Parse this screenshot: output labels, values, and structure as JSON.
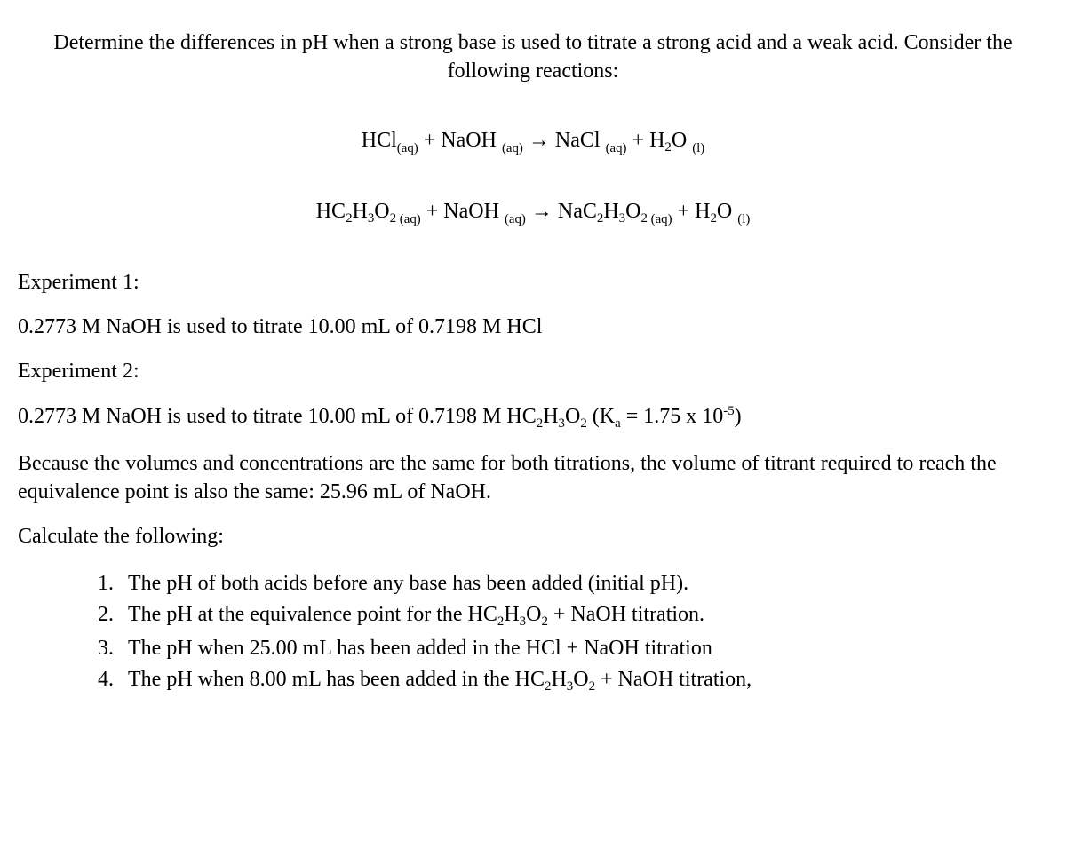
{
  "intro": "Determine the differences in pH when a strong base is used to titrate a strong acid and a weak acid. Consider the following reactions:",
  "eqn1": {
    "r1": "HCl",
    "r1state": "(aq)",
    "plus1": " + ",
    "r2": "NaOH",
    "r2state": "(aq)",
    "arrow": " → ",
    "p1": "NaCl",
    "p1state": "(aq)",
    "plus2": " + ",
    "p2a": "H",
    "p2sub": "2",
    "p2b": "O",
    "p2state": "(l)"
  },
  "eqn2": {
    "r1a": "HC",
    "r1s1": "2",
    "r1b": "H",
    "r1s2": "3",
    "r1c": "O",
    "r1s3": "2",
    "r1state": " (aq)",
    "plus1": " + ",
    "r2": "NaOH",
    "r2state": "(aq)",
    "arrow": " → ",
    "p1a": "NaC",
    "p1s1": "2",
    "p1b": "H",
    "p1s2": "3",
    "p1c": "O",
    "p1s3": "2",
    "p1state": " (aq)",
    "plus2": " + ",
    "p2a": "H",
    "p2sub": "2",
    "p2b": "O",
    "p2state": "(l)"
  },
  "exp1_label": "Experiment 1:",
  "exp1_text": "0.2773 M NaOH is used to titrate 10.00 mL of 0.7198 M HCl",
  "exp2_label": "Experiment 2:",
  "exp2_prefix": "0.2773 M NaOH is used to titrate 10.00 mL of 0.7198 M ",
  "acetic": {
    "a": "HC",
    "s1": "2",
    "b": "H",
    "s2": "3",
    "c": "O",
    "s3": "2"
  },
  "ka_pre": " (K",
  "ka_sub": "a",
  "ka_mid": " = 1.75 x 10",
  "ka_sup": "-5",
  "ka_end": ")",
  "note": "Because the volumes and concentrations are the same for both titrations, the volume of titrant required to reach the equivalence point is also the same: 25.96 mL of NaOH.",
  "calc_label": "Calculate the following:",
  "q1_num": "1.",
  "q1": "The pH of both acids before any base has been added (initial pH).",
  "q2_num": "2.",
  "q2_pre": "The pH at the equivalence point for the ",
  "q2_post": " + NaOH titration.",
  "q3_num": "3.",
  "q3": "The pH when 25.00 mL has been added in the HCl + NaOH titration",
  "q4_num": "4.",
  "q4_pre": "The pH when 8.00 mL has been added in the ",
  "q4_post": " + NaOH titration,"
}
